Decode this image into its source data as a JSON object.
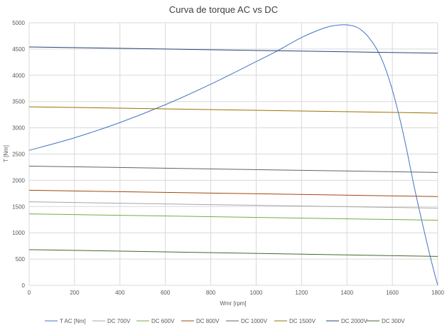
{
  "chart_data": {
    "type": "line",
    "title": "Curva de torque AC vs DC",
    "xlabel": "Wmr [rpm]",
    "ylabel": "T [Nm]",
    "xlim": [
      0,
      1800
    ],
    "ylim": [
      0,
      5000
    ],
    "xticks": [
      0,
      200,
      400,
      600,
      800,
      1000,
      1200,
      1400,
      1600,
      1800
    ],
    "yticks": [
      0,
      500,
      1000,
      1500,
      2000,
      2500,
      3000,
      3500,
      4000,
      4500,
      5000
    ],
    "grid": true,
    "legend_position": "bottom",
    "series": [
      {
        "name": "T AC [Nm]",
        "color": "#4472C4",
        "x": [
          0,
          200,
          400,
          600,
          800,
          1000,
          1100,
          1200,
          1300,
          1350,
          1400,
          1450,
          1500,
          1550,
          1600,
          1650,
          1700,
          1750,
          1780,
          1800
        ],
        "y": [
          2570,
          2810,
          3100,
          3440,
          3830,
          4260,
          4480,
          4720,
          4900,
          4950,
          4960,
          4900,
          4700,
          4340,
          3720,
          2850,
          1800,
          850,
          320,
          0
        ]
      },
      {
        "name": "DC 700V",
        "color": "#A5A5A5",
        "x": [
          0,
          1800
        ],
        "y": [
          1590,
          1470
        ]
      },
      {
        "name": "DC 600V",
        "color": "#70AD47",
        "x": [
          0,
          1800
        ],
        "y": [
          1360,
          1240
        ]
      },
      {
        "name": "DC 800V",
        "color": "#9E480E",
        "x": [
          0,
          1800
        ],
        "y": [
          1810,
          1690
        ]
      },
      {
        "name": "DC 1000V",
        "color": "#636363",
        "x": [
          0,
          1800
        ],
        "y": [
          2270,
          2150
        ]
      },
      {
        "name": "DC 1500V",
        "color": "#997300",
        "x": [
          0,
          1800
        ],
        "y": [
          3400,
          3280
        ]
      },
      {
        "name": "DC 2000V",
        "color": "#264478",
        "x": [
          0,
          1800
        ],
        "y": [
          4540,
          4420
        ]
      },
      {
        "name": "DC 300V",
        "color": "#43682B",
        "x": [
          0,
          1800
        ],
        "y": [
          680,
          550
        ]
      }
    ]
  }
}
